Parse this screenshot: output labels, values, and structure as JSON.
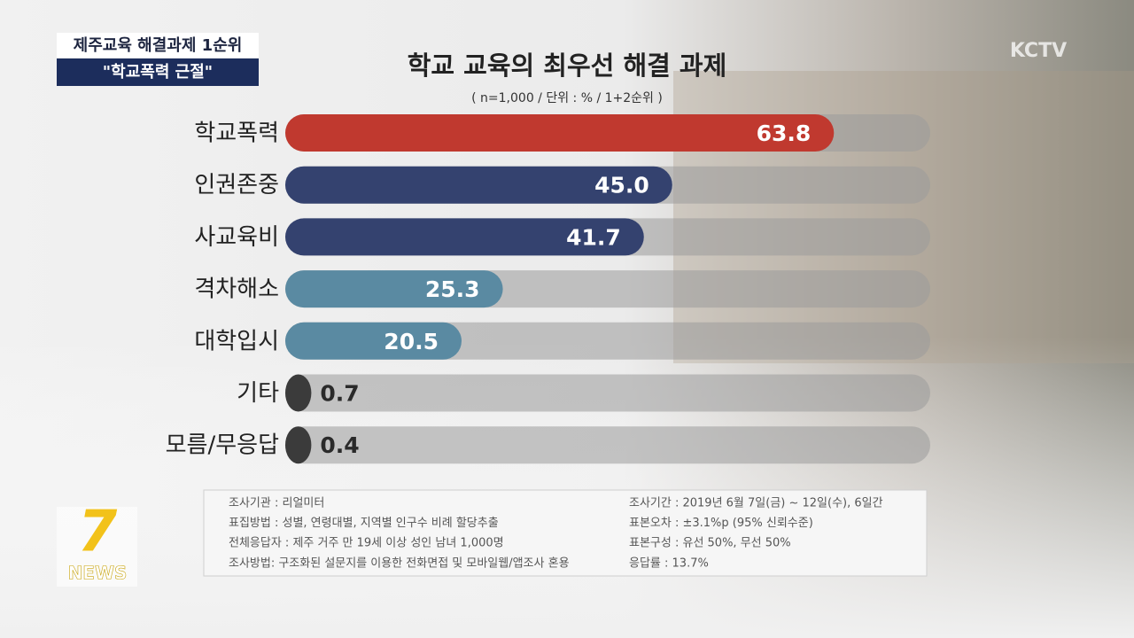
{
  "header": {
    "caption_top": "제주교육 해결과제 1순위",
    "caption_bottom": "\"학교폭력 근절\"",
    "channel_logo": "KCTV",
    "news_logo_number": "7",
    "news_logo_text": "NEWS"
  },
  "chart_data": {
    "type": "bar",
    "orientation": "horizontal",
    "title": "학교 교육의 최우선 해결 과제",
    "subtitle": "( n=1,000 / 단위 : % / 1+2순위 )",
    "categories": [
      "학교폭력",
      "인권존중",
      "사교육비",
      "격차해소",
      "대학입시",
      "기타",
      "모름/무응답"
    ],
    "values": [
      63.8,
      45.0,
      41.7,
      25.3,
      20.5,
      0.7,
      0.4
    ],
    "value_labels": [
      "63.8",
      "45.0",
      "41.7",
      "25.3",
      "20.5",
      "0.7",
      "0.4"
    ],
    "colors": [
      "#c0392f",
      "#34426f",
      "#34426f",
      "#5a8aa2",
      "#5a8aa2",
      "#3b3b3b",
      "#3b3b3b"
    ],
    "xlim": [
      0,
      75
    ]
  },
  "notes": {
    "left": [
      "조사기관 : 리얼미터",
      "표집방법 : 성별, 연령대별, 지역별 인구수 비례 할당추출",
      "전체응답자 : 제주 거주 만 19세 이상 성인 남녀 1,000명",
      "조사방법: 구조화된 설문지를 이용한 전화면접 및 모바일웹/앱조사 혼용"
    ],
    "right": [
      "조사기간 : 2019년 6월 7일(금) ~ 12일(수), 6일간",
      "표본오차 : ±3.1%p (95% 신뢰수준)",
      "표본구성 : 유선 50%, 무선 50%",
      "응답률 : 13.7%"
    ]
  }
}
